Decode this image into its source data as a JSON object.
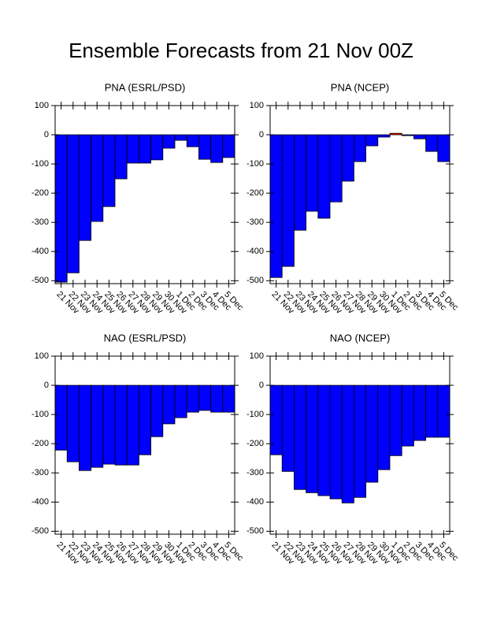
{
  "title": "Ensemble Forecasts from 21 Nov 00Z",
  "chart_data": [
    {
      "type": "bar",
      "title": "PNA (ESRL/PSD)",
      "categories": [
        "21 Nov",
        "22 Nov",
        "23 Nov",
        "24 Nov",
        "25 Nov",
        "26 Nov",
        "27 Nov",
        "28 Nov",
        "29 Nov",
        "30 Nov",
        "1 Dec",
        "2 Dec",
        "3 Dec",
        "4 Dec",
        "5 Dec"
      ],
      "values": [
        -505,
        -473,
        -362,
        -297,
        -246,
        -151,
        -97,
        -97,
        -86,
        -46,
        -19,
        -41,
        -84,
        -95,
        -78
      ],
      "color": "#0000ff",
      "positive_color": "#ff0000",
      "ylim": [
        -510,
        100
      ],
      "yticks": [
        -500,
        -400,
        -300,
        -200,
        -100,
        0,
        100
      ]
    },
    {
      "type": "bar",
      "title": "PNA (NCEP)",
      "categories": [
        "21 Nov",
        "22 Nov",
        "23 Nov",
        "24 Nov",
        "25 Nov",
        "26 Nov",
        "27 Nov",
        "28 Nov",
        "29 Nov",
        "30 Nov",
        "1 Dec",
        "2 Dec",
        "3 Dec",
        "4 Dec",
        "5 Dec"
      ],
      "values": [
        -489,
        -451,
        -327,
        -262,
        -286,
        -230,
        -159,
        -92,
        -38,
        -8,
        5,
        -3,
        -14,
        -57,
        -92
      ],
      "color": "#0000ff",
      "positive_color": "#ff0000",
      "ylim": [
        -510,
        100
      ],
      "yticks": [
        -500,
        -400,
        -300,
        -200,
        -100,
        0,
        100
      ]
    },
    {
      "type": "bar",
      "title": "NAO (ESRL/PSD)",
      "categories": [
        "21 Nov",
        "22 Nov",
        "23 Nov",
        "24 Nov",
        "25 Nov",
        "26 Nov",
        "27 Nov",
        "28 Nov",
        "29 Nov",
        "30 Nov",
        "1 Dec",
        "2 Dec",
        "3 Dec",
        "4 Dec",
        "5 Dec"
      ],
      "values": [
        -222,
        -262,
        -292,
        -281,
        -270,
        -273,
        -273,
        -238,
        -176,
        -132,
        -111,
        -92,
        -86,
        -92,
        -92
      ],
      "color": "#0000ff",
      "positive_color": "#ff0000",
      "ylim": [
        -510,
        100
      ],
      "yticks": [
        -500,
        -400,
        -300,
        -200,
        -100,
        0,
        100
      ]
    },
    {
      "type": "bar",
      "title": "NAO (NCEP)",
      "categories": [
        "21 Nov",
        "22 Nov",
        "23 Nov",
        "24 Nov",
        "25 Nov",
        "26 Nov",
        "27 Nov",
        "28 Nov",
        "29 Nov",
        "30 Nov",
        "1 Dec",
        "2 Dec",
        "3 Dec",
        "4 Dec",
        "5 Dec"
      ],
      "values": [
        -238,
        -295,
        -357,
        -368,
        -378,
        -389,
        -403,
        -384,
        -332,
        -289,
        -241,
        -208,
        -189,
        -178,
        -178
      ],
      "color": "#0000ff",
      "positive_color": "#ff0000",
      "ylim": [
        -510,
        100
      ],
      "yticks": [
        -500,
        -400,
        -300,
        -200,
        -100,
        0,
        100
      ]
    }
  ]
}
